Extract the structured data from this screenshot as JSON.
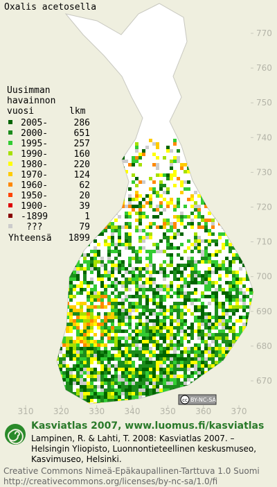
{
  "title": "Oxalis acetosella",
  "legend": {
    "heading": [
      "Uusimman",
      "havainnon",
      "vuosi"
    ],
    "count_heading": "lkm",
    "entries": [
      {
        "label": "2005-",
        "count": 286,
        "color": "#006400"
      },
      {
        "label": "2000-",
        "count": 651,
        "color": "#1c8c1c"
      },
      {
        "label": "1995-",
        "count": 257,
        "color": "#33cc33"
      },
      {
        "label": "1990-",
        "count": 160,
        "color": "#a6e000"
      },
      {
        "label": "1980-",
        "count": 220,
        "color": "#ffff00"
      },
      {
        "label": "1970-",
        "count": 124,
        "color": "#ffcc00"
      },
      {
        "label": "1960-",
        "count": 62,
        "color": "#ff8800"
      },
      {
        "label": "1950-",
        "count": 20,
        "color": "#ff4400"
      },
      {
        "label": "1900-",
        "count": 39,
        "color": "#dd0000"
      },
      {
        "label": "-1899",
        "count": 1,
        "color": "#880000"
      },
      {
        "label": "???",
        "count": 79,
        "color": "#cccccc"
      }
    ],
    "total_label": "Yhteensä",
    "total": 1899
  },
  "axes": {
    "x_ticks": [
      310,
      320,
      330,
      340,
      350,
      360,
      370
    ],
    "y_ticks": [
      670,
      680,
      690,
      700,
      710,
      720,
      730,
      740,
      750,
      760,
      770
    ]
  },
  "badge": {
    "cc": "cc",
    "text": "BY-NC-SA"
  },
  "footer": {
    "site": "Kasviatlas 2007, www.luomus.fi/kasviatlas",
    "citation": [
      "Lampinen, R. & Lahti, T. 2008: Kasviatlas 2007. –",
      "Helsingin Yliopisto, Luonnontieteellinen keskusmuseo,",
      "Kasvimuseo, Helsinki."
    ],
    "license": [
      "Creative Commons Nimeä-Epäkaupallinen-Tarttuva 1.0 Suomi",
      "http://creativecommons.org/licenses/by-nc-sa/1.0/fi"
    ]
  }
}
